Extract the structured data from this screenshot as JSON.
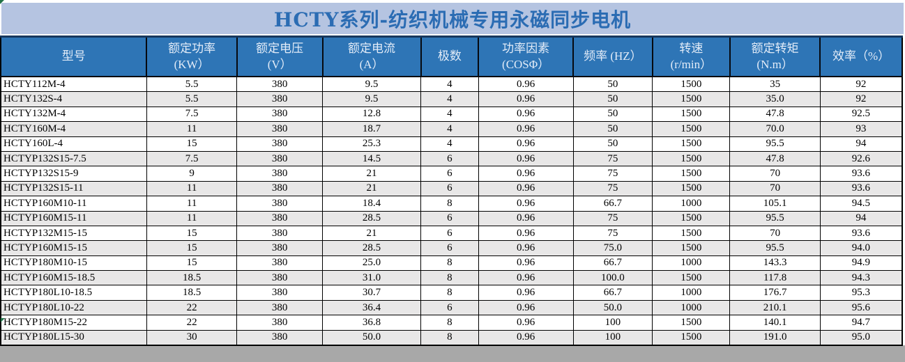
{
  "title": "HCTY系列-纺织机械专用永磁同步电机",
  "colors": {
    "title_bar_bg": "#b5c4e1",
    "title_text": "#2b6cb3",
    "header_bg": "#2e75b6",
    "header_text": "#e3ecf8",
    "row_bg": "#ffffff",
    "row_alt_bg": "#e8e7e7",
    "grid_border": "#000000",
    "bottom_strip_bg": "#a8a8a8",
    "error_indicator_green": "#1f7246"
  },
  "icons": {
    "cell_error_indicator": "green corner triangle"
  },
  "table": {
    "columns": [
      {
        "id": "model",
        "line1": "型号",
        "line2": ""
      },
      {
        "id": "rated-power",
        "line1": "额定功率",
        "line2": "(KW）"
      },
      {
        "id": "rated-voltage",
        "line1": "额定电压",
        "line2": "(V）"
      },
      {
        "id": "rated-current",
        "line1": "额定电流",
        "line2": "(A）"
      },
      {
        "id": "poles",
        "line1": "极数",
        "line2": ""
      },
      {
        "id": "power-factor",
        "line1": "功率因素",
        "line2": "(COSΦ）"
      },
      {
        "id": "frequency",
        "line1": "频率 (HZ）",
        "line2": ""
      },
      {
        "id": "speed",
        "line1": "转速",
        "line2": "(r/min）"
      },
      {
        "id": "rated-torque",
        "line1": "额定转矩",
        "line2": "(N.m）"
      },
      {
        "id": "efficiency",
        "line1": "效率（%）",
        "line2": ""
      }
    ],
    "rows": [
      [
        "HCTY112M-4",
        "5.5",
        "380",
        "9.5",
        "4",
        "0.96",
        "50",
        "1500",
        "35",
        "92"
      ],
      [
        "HCTY132S-4",
        "5.5",
        "380",
        "9.5",
        "4",
        "0.96",
        "50",
        "1500",
        "35.0",
        "92"
      ],
      [
        "HCTY132M-4",
        "7.5",
        "380",
        "12.8",
        "4",
        "0.96",
        "50",
        "1500",
        "47.8",
        "92.5"
      ],
      [
        "HCTY160M-4",
        "11",
        "380",
        "18.7",
        "4",
        "0.96",
        "50",
        "1500",
        "70.0",
        "93"
      ],
      [
        "HCTY160L-4",
        "15",
        "380",
        "25.3",
        "4",
        "0.96",
        "50",
        "1500",
        "95.5",
        "94"
      ],
      [
        "HCTYP132S15-7.5",
        "7.5",
        "380",
        "14.5",
        "6",
        "0.96",
        "75",
        "1500",
        "47.8",
        "92.6"
      ],
      [
        "HCTYP132S15-9",
        "9",
        "380",
        "21",
        "6",
        "0.96",
        "75",
        "1500",
        "70",
        "93.6"
      ],
      [
        "HCTYP132S15-11",
        "11",
        "380",
        "21",
        "6",
        "0.96",
        "75",
        "1500",
        "70",
        "93.6"
      ],
      [
        "HCTYP160M10-11",
        "11",
        "380",
        "18.4",
        "8",
        "0.96",
        "66.7",
        "1000",
        "105.1",
        "94.5"
      ],
      [
        "HCTYP160M15-11",
        "11",
        "380",
        "28.5",
        "6",
        "0.96",
        "75",
        "1500",
        "95.5",
        "94"
      ],
      [
        "HCTYP132M15-15",
        "15",
        "380",
        "21",
        "6",
        "0.96",
        "75",
        "1500",
        "70",
        "93.6"
      ],
      [
        "HCTYP160M15-15",
        "15",
        "380",
        "28.5",
        "6",
        "0.96",
        "75.0",
        "1500",
        "95.5",
        "94.0"
      ],
      [
        "HCTYP180M10-15",
        "15",
        "380",
        "25.0",
        "8",
        "0.96",
        "66.7",
        "1000",
        "143.3",
        "94.9"
      ],
      [
        "HCTYP160M15-18.5",
        "18.5",
        "380",
        "31.0",
        "8",
        "0.96",
        "100.0",
        "1500",
        "117.8",
        "94.3"
      ],
      [
        "HCTYP180L10-18.5",
        "18.5",
        "380",
        "30.7",
        "8",
        "0.96",
        "66.7",
        "1000",
        "176.7",
        "95.3"
      ],
      [
        "HCTYP180L10-22",
        "22",
        "380",
        "36.4",
        "6",
        "0.96",
        "50.0",
        "1000",
        "210.1",
        "95.6"
      ],
      [
        "HCTYP180M15-22",
        "22",
        "380",
        "36.8",
        "8",
        "0.96",
        "100",
        "1500",
        "140.1",
        "94.7"
      ],
      [
        "HCTYP180L15-30",
        "30",
        "380",
        "50.0",
        "8",
        "0.96",
        "100",
        "1500",
        "191.0",
        "95.0"
      ]
    ]
  }
}
